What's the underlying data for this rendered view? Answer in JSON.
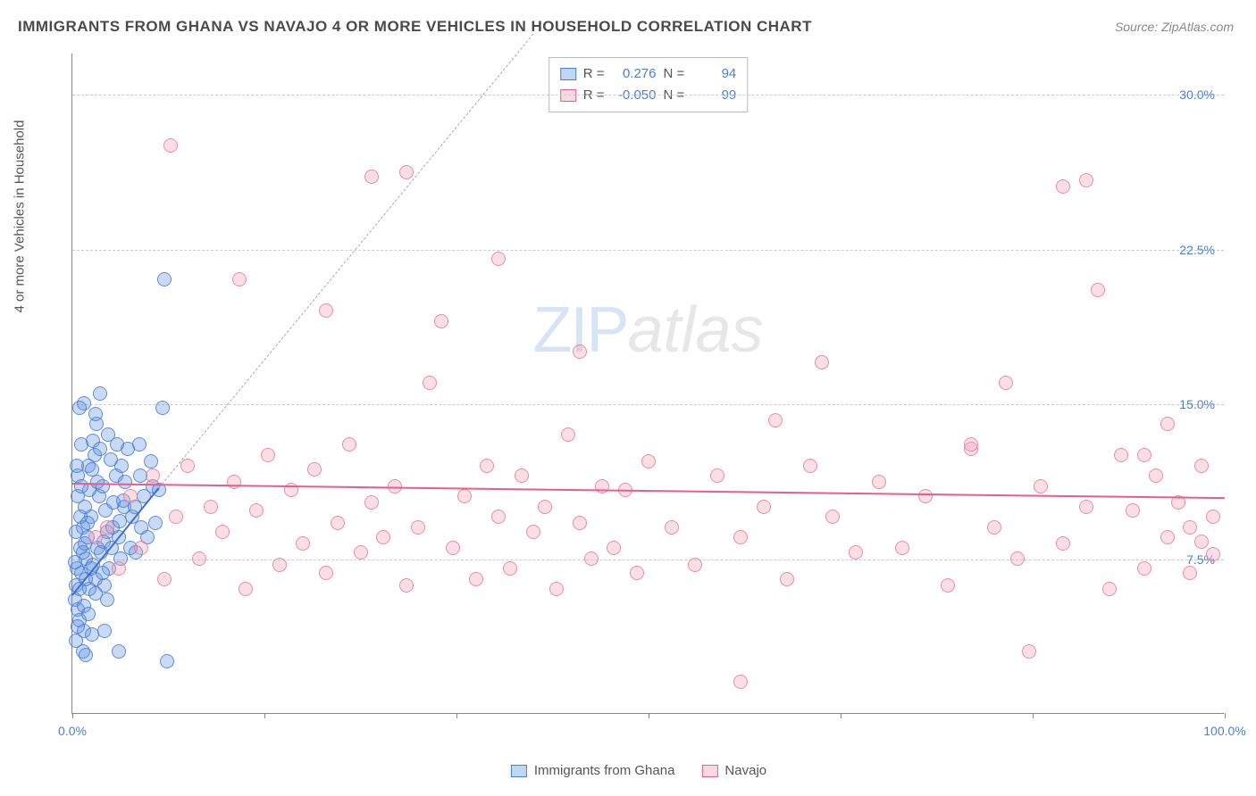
{
  "title": "IMMIGRANTS FROM GHANA VS NAVAJO 4 OR MORE VEHICLES IN HOUSEHOLD CORRELATION CHART",
  "source": "Source: ZipAtlas.com",
  "y_axis_label": "4 or more Vehicles in Household",
  "chart": {
    "type": "scatter",
    "xlim": [
      0,
      100
    ],
    "ylim": [
      0,
      32
    ],
    "x_ticks": [
      0,
      16.67,
      33.33,
      50,
      66.67,
      83.33,
      100
    ],
    "x_tick_labels": {
      "0": "0.0%",
      "100": "100.0%"
    },
    "y_ticks": [
      7.5,
      15.0,
      22.5,
      30.0
    ],
    "y_tick_labels": [
      "7.5%",
      "15.0%",
      "22.5%",
      "30.0%"
    ],
    "grid_color": "#cccccc",
    "background_color": "#ffffff",
    "axis_color": "#888888",
    "label_color": "#4a7fd8",
    "marker_size": 16,
    "series": [
      {
        "name": "Immigrants from Ghana",
        "color_fill": "rgba(100,150,230,0.35)",
        "color_stroke": "rgba(70,120,210,0.8)",
        "R": "0.276",
        "N": "94",
        "trend": {
          "x1": 0,
          "y1": 5.8,
          "x2": 7.5,
          "y2": 11.0,
          "solid_color": "#3b6fd0",
          "dash_to_x": 40,
          "dash_to_y": 33
        },
        "points": [
          [
            0.2,
            5.5
          ],
          [
            0.3,
            6.2
          ],
          [
            0.5,
            5.0
          ],
          [
            0.4,
            7.0
          ],
          [
            0.6,
            4.5
          ],
          [
            0.8,
            6.8
          ],
          [
            1.0,
            5.2
          ],
          [
            1.2,
            7.5
          ],
          [
            0.7,
            8.0
          ],
          [
            1.5,
            6.0
          ],
          [
            0.9,
            9.0
          ],
          [
            1.3,
            8.5
          ],
          [
            1.8,
            7.2
          ],
          [
            2.0,
            6.5
          ],
          [
            1.1,
            10.0
          ],
          [
            2.2,
            8.0
          ],
          [
            0.5,
            11.5
          ],
          [
            2.5,
            7.8
          ],
          [
            1.6,
            9.5
          ],
          [
            2.8,
            6.2
          ],
          [
            3.0,
            8.8
          ],
          [
            1.4,
            12.0
          ],
          [
            3.2,
            7.0
          ],
          [
            2.3,
            10.5
          ],
          [
            3.5,
            9.0
          ],
          [
            0.8,
            13.0
          ],
          [
            4.0,
            8.5
          ],
          [
            2.6,
            11.0
          ],
          [
            4.2,
            7.5
          ],
          [
            1.9,
            12.5
          ],
          [
            4.5,
            10.0
          ],
          [
            3.8,
            11.5
          ],
          [
            5.0,
            8.0
          ],
          [
            2.1,
            14.0
          ],
          [
            5.2,
            9.5
          ],
          [
            4.3,
            12.0
          ],
          [
            5.5,
            7.8
          ],
          [
            3.1,
            13.5
          ],
          [
            6.0,
            9.0
          ],
          [
            1.0,
            15.0
          ],
          [
            6.2,
            10.5
          ],
          [
            4.8,
            12.8
          ],
          [
            6.5,
            8.5
          ],
          [
            2.4,
            15.5
          ],
          [
            7.0,
            11.0
          ],
          [
            5.8,
            13.0
          ],
          [
            7.2,
            9.2
          ],
          [
            0.6,
            14.8
          ],
          [
            7.5,
            10.8
          ],
          [
            2.0,
            14.5
          ],
          [
            3.3,
            12.3
          ],
          [
            1.7,
            11.8
          ],
          [
            4.6,
            11.2
          ],
          [
            0.3,
            8.8
          ],
          [
            5.9,
            11.5
          ],
          [
            2.9,
            9.8
          ],
          [
            6.8,
            12.2
          ],
          [
            1.2,
            6.5
          ],
          [
            3.6,
            10.2
          ],
          [
            0.9,
            7.8
          ],
          [
            4.1,
            9.3
          ],
          [
            2.7,
            8.3
          ],
          [
            5.4,
            10.0
          ],
          [
            1.5,
            10.8
          ],
          [
            0.4,
            12.0
          ],
          [
            3.9,
            13.0
          ],
          [
            0.7,
            9.5
          ],
          [
            2.2,
            11.2
          ],
          [
            1.8,
            13.2
          ],
          [
            0.5,
            10.5
          ],
          [
            1.1,
            8.2
          ],
          [
            0.8,
            11.0
          ],
          [
            1.6,
            7.0
          ],
          [
            2.4,
            12.8
          ],
          [
            0.6,
            6.0
          ],
          [
            1.3,
            9.2
          ],
          [
            3.4,
            8.0
          ],
          [
            0.2,
            7.3
          ],
          [
            4.4,
            10.3
          ],
          [
            1.0,
            4.0
          ],
          [
            2.0,
            5.8
          ],
          [
            0.3,
            3.5
          ],
          [
            1.4,
            4.8
          ],
          [
            2.6,
            6.8
          ],
          [
            0.9,
            3.0
          ],
          [
            3.0,
            5.5
          ],
          [
            1.7,
            3.8
          ],
          [
            4.0,
            3.0
          ],
          [
            8.2,
            2.5
          ],
          [
            7.8,
            14.8
          ],
          [
            8.0,
            21.0
          ],
          [
            0.5,
            4.2
          ],
          [
            1.2,
            2.8
          ],
          [
            2.8,
            4.0
          ]
        ]
      },
      {
        "name": "Navajo",
        "color_fill": "rgba(245,160,180,0.35)",
        "color_stroke": "rgba(230,120,150,0.8)",
        "R": "-0.050",
        "N": "99",
        "trend": {
          "x1": 0,
          "y1": 11.2,
          "x2": 100,
          "y2": 10.5,
          "solid_color": "#e85d8a"
        },
        "points": [
          [
            2,
            8.5
          ],
          [
            3,
            9.0
          ],
          [
            4,
            7.0
          ],
          [
            5,
            10.5
          ],
          [
            6,
            8.0
          ],
          [
            7,
            11.5
          ],
          [
            8,
            6.5
          ],
          [
            8.5,
            27.5
          ],
          [
            9,
            9.5
          ],
          [
            10,
            12.0
          ],
          [
            11,
            7.5
          ],
          [
            12,
            10.0
          ],
          [
            13,
            8.8
          ],
          [
            14,
            11.2
          ],
          [
            14.5,
            21.0
          ],
          [
            15,
            6.0
          ],
          [
            16,
            9.8
          ],
          [
            17,
            12.5
          ],
          [
            18,
            7.2
          ],
          [
            19,
            10.8
          ],
          [
            20,
            8.2
          ],
          [
            21,
            11.8
          ],
          [
            22,
            6.8
          ],
          [
            22,
            19.5
          ],
          [
            23,
            9.2
          ],
          [
            24,
            13.0
          ],
          [
            25,
            7.8
          ],
          [
            26,
            10.2
          ],
          [
            26,
            26.0
          ],
          [
            27,
            8.5
          ],
          [
            28,
            11.0
          ],
          [
            29,
            6.2
          ],
          [
            29,
            26.2
          ],
          [
            30,
            9.0
          ],
          [
            31,
            16.0
          ],
          [
            32,
            19.0
          ],
          [
            33,
            8.0
          ],
          [
            34,
            10.5
          ],
          [
            35,
            6.5
          ],
          [
            36,
            12.0
          ],
          [
            37,
            9.5
          ],
          [
            37,
            22.0
          ],
          [
            38,
            7.0
          ],
          [
            39,
            11.5
          ],
          [
            40,
            8.8
          ],
          [
            41,
            10.0
          ],
          [
            42,
            6.0
          ],
          [
            43,
            13.5
          ],
          [
            44,
            9.2
          ],
          [
            44,
            17.5
          ],
          [
            45,
            7.5
          ],
          [
            46,
            11.0
          ],
          [
            47,
            8.0
          ],
          [
            48,
            10.8
          ],
          [
            49,
            6.8
          ],
          [
            50,
            12.2
          ],
          [
            52,
            9.0
          ],
          [
            54,
            7.2
          ],
          [
            56,
            11.5
          ],
          [
            58,
            8.5
          ],
          [
            58,
            1.5
          ],
          [
            60,
            10.0
          ],
          [
            61,
            14.2
          ],
          [
            62,
            6.5
          ],
          [
            64,
            12.0
          ],
          [
            65,
            17.0
          ],
          [
            66,
            9.5
          ],
          [
            68,
            7.8
          ],
          [
            70,
            11.2
          ],
          [
            72,
            8.0
          ],
          [
            74,
            10.5
          ],
          [
            76,
            6.2
          ],
          [
            78,
            12.8
          ],
          [
            78,
            13.0
          ],
          [
            80,
            9.0
          ],
          [
            81,
            16.0
          ],
          [
            82,
            7.5
          ],
          [
            83,
            3.0
          ],
          [
            84,
            11.0
          ],
          [
            86,
            8.2
          ],
          [
            86,
            25.5
          ],
          [
            88,
            10.0
          ],
          [
            88,
            25.8
          ],
          [
            89,
            20.5
          ],
          [
            90,
            6.0
          ],
          [
            91,
            12.5
          ],
          [
            92,
            9.8
          ],
          [
            93,
            7.0
          ],
          [
            93,
            12.5
          ],
          [
            94,
            11.5
          ],
          [
            95,
            8.5
          ],
          [
            95,
            14.0
          ],
          [
            96,
            10.2
          ],
          [
            97,
            6.8
          ],
          [
            97,
            9.0
          ],
          [
            98,
            12.0
          ],
          [
            98,
            8.3
          ],
          [
            99,
            9.5
          ],
          [
            99,
            7.7
          ]
        ]
      }
    ]
  },
  "stats_box": {
    "rows": [
      {
        "swatch": "blue",
        "R_label": "R =",
        "R": "0.276",
        "N_label": "N =",
        "N": "94"
      },
      {
        "swatch": "pink",
        "R_label": "R =",
        "R": "-0.050",
        "N_label": "N =",
        "N": "99"
      }
    ]
  },
  "legend": {
    "items": [
      {
        "swatch": "blue",
        "label": "Immigrants from Ghana"
      },
      {
        "swatch": "pink",
        "label": "Navajo"
      }
    ]
  },
  "watermark": {
    "part1": "ZIP",
    "part2": "atlas"
  }
}
